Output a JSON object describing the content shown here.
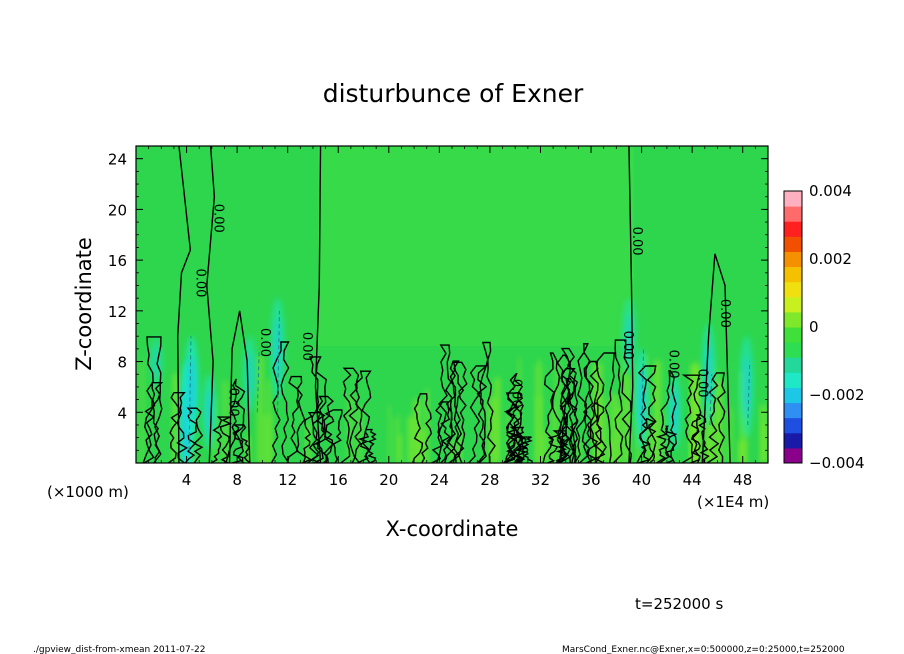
{
  "chart_data": {
    "type": "heatmap",
    "title": "disturbunce of Exner",
    "xlabel": "X-coordinate",
    "ylabel": "Z-coordinate",
    "x_unit": "(×1E4 m)",
    "y_unit": "(×1000 m)",
    "xlim": [
      0,
      50
    ],
    "ylim": [
      0,
      25
    ],
    "x_ticks": [
      4,
      8,
      12,
      16,
      20,
      24,
      28,
      32,
      36,
      40,
      44,
      48
    ],
    "x_tick_labels": [
      "4",
      "8",
      "12",
      "16",
      "20",
      "24",
      "28",
      "32",
      "36",
      "40",
      "44",
      "48"
    ],
    "y_ticks": [
      4,
      8,
      12,
      16,
      20,
      24
    ],
    "y_tick_labels": [
      "4",
      "8",
      "12",
      "16",
      "20",
      "24"
    ],
    "colorbar": {
      "range": [
        -0.004,
        0.004
      ],
      "tick_values": [
        0.004,
        0.002,
        0,
        -0.002,
        -0.004
      ],
      "tick_labels": [
        "0.004",
        "0.002",
        "0",
        "−0.002",
        "−0.004"
      ],
      "colors": [
        "#8b008b",
        "#1a1aa8",
        "#1f4fe0",
        "#2f8ff2",
        "#1cc8e6",
        "#1ee8c6",
        "#22d89a",
        "#2ede52",
        "#3fe03a",
        "#7fe82a",
        "#c8f01e",
        "#f0e010",
        "#f5c000",
        "#f59000",
        "#f05000",
        "#ff2020",
        "#ff6a6a",
        "#ffb0c0"
      ]
    },
    "contour_labels": [
      {
        "text": "0.00",
        "x": 4.8,
        "z": 14.2
      },
      {
        "text": "0.00",
        "x": 6.2,
        "z": 19.3
      },
      {
        "text": "0.00",
        "x": 7.4,
        "z": 4.8
      },
      {
        "text": "0.00",
        "x": 9.9,
        "z": 9.5
      },
      {
        "text": "0.00",
        "x": 13.2,
        "z": 9.2
      },
      {
        "text": "0.00",
        "x": 29.8,
        "z": 5.5
      },
      {
        "text": "0.00",
        "x": 39.3,
        "z": 17.5
      },
      {
        "text": "0.00",
        "x": 38.6,
        "z": 9.3
      },
      {
        "text": "0.00",
        "x": 42.2,
        "z": 7.8
      },
      {
        "text": "0.00",
        "x": 44.5,
        "z": 6.3
      },
      {
        "text": "0.00",
        "x": 46.3,
        "z": 11.8
      }
    ],
    "grid": false,
    "legend": "colorbar-right"
  },
  "annotations": {
    "time": "t=252000 s",
    "footer_left": "./gpview_dist-from-xmean  2011-07-22",
    "footer_right": "MarsCond_Exner.nc@Exner,x=0:500000,z=0:25000,t=252000"
  }
}
